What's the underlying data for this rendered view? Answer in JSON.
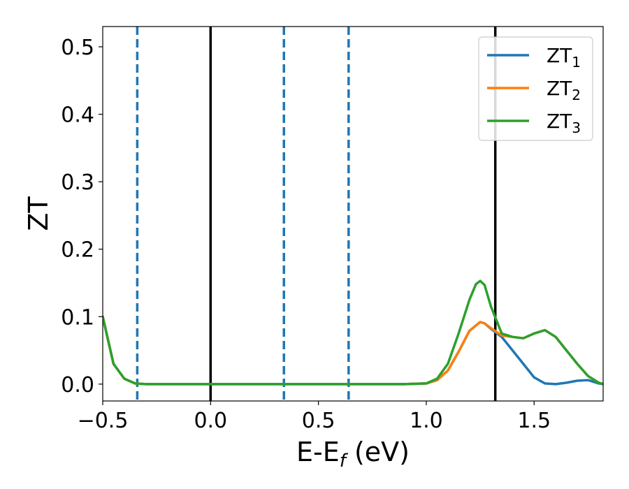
{
  "chart_data": {
    "type": "line",
    "xlabel": "E-E",
    "xlabel_sub": "f",
    "xlabel_unit": " (eV)",
    "ylabel": "ZT",
    "xlim": [
      -0.5,
      1.82
    ],
    "ylim": [
      -0.025,
      0.53
    ],
    "xticks": [
      -0.5,
      0.0,
      0.5,
      1.0,
      1.5
    ],
    "xtick_labels": [
      "−0.5",
      "0.0",
      "0.5",
      "1.0",
      "1.5"
    ],
    "yticks": [
      0.0,
      0.1,
      0.2,
      0.3,
      0.4,
      0.5
    ],
    "ytick_labels": [
      "0.0",
      "0.1",
      "0.2",
      "0.3",
      "0.4",
      "0.5"
    ],
    "grid": false,
    "legend_position": "top-right",
    "series": [
      {
        "name": "ZT",
        "subscript": "1",
        "color": "#1f77b4",
        "x": [
          -0.5,
          -0.45,
          -0.4,
          -0.35,
          -0.3,
          0.0,
          0.5,
          0.9,
          1.0,
          1.05,
          1.1,
          1.15,
          1.2,
          1.25,
          1.27,
          1.3,
          1.35,
          1.4,
          1.45,
          1.5,
          1.55,
          1.6,
          1.65,
          1.7,
          1.75,
          1.8,
          1.82
        ],
        "y": [
          0.1,
          0.03,
          0.008,
          0.001,
          0.0,
          0.0,
          0.0,
          0.0,
          0.001,
          0.006,
          0.02,
          0.048,
          0.079,
          0.092,
          0.09,
          0.082,
          0.07,
          0.05,
          0.03,
          0.01,
          0.001,
          0.0,
          0.002,
          0.005,
          0.006,
          0.001,
          0.0
        ]
      },
      {
        "name": "ZT",
        "subscript": "2",
        "color": "#ff7f0e",
        "x": [
          -0.5,
          -0.45,
          -0.4,
          -0.35,
          -0.3,
          0.0,
          0.5,
          0.9,
          1.0,
          1.05,
          1.1,
          1.15,
          1.2,
          1.25,
          1.27,
          1.3,
          1.35,
          1.4,
          1.45,
          1.5,
          1.55,
          1.6,
          1.65,
          1.7,
          1.75,
          1.8,
          1.82
        ],
        "y": [
          0.1,
          0.03,
          0.008,
          0.001,
          0.0,
          0.0,
          0.0,
          0.0,
          0.001,
          0.006,
          0.02,
          0.048,
          0.079,
          0.092,
          0.09,
          0.083,
          0.072,
          0.07,
          0.068,
          0.075,
          0.08,
          0.07,
          0.05,
          0.03,
          0.012,
          0.002,
          0.0
        ]
      },
      {
        "name": "ZT",
        "subscript": "3",
        "color": "#2ca02c",
        "x": [
          -0.5,
          -0.45,
          -0.4,
          -0.35,
          -0.3,
          0.0,
          0.5,
          0.9,
          1.0,
          1.05,
          1.1,
          1.15,
          1.2,
          1.23,
          1.25,
          1.27,
          1.3,
          1.35,
          1.4,
          1.45,
          1.5,
          1.55,
          1.6,
          1.65,
          1.7,
          1.75,
          1.8,
          1.82
        ],
        "y": [
          0.1,
          0.03,
          0.008,
          0.001,
          0.0,
          0.0,
          0.0,
          0.0,
          0.001,
          0.008,
          0.03,
          0.075,
          0.125,
          0.148,
          0.153,
          0.147,
          0.115,
          0.075,
          0.07,
          0.068,
          0.075,
          0.08,
          0.07,
          0.05,
          0.03,
          0.012,
          0.002,
          0.0
        ]
      }
    ],
    "vlines": [
      {
        "x": -0.34,
        "style": "dashed",
        "color": "#1f77b4"
      },
      {
        "x": 0.0,
        "style": "solid",
        "color": "#000000"
      },
      {
        "x": 0.34,
        "style": "dashed",
        "color": "#1f77b4"
      },
      {
        "x": 0.64,
        "style": "dashed",
        "color": "#1f77b4"
      },
      {
        "x": 1.32,
        "style": "solid",
        "color": "#000000"
      }
    ]
  }
}
